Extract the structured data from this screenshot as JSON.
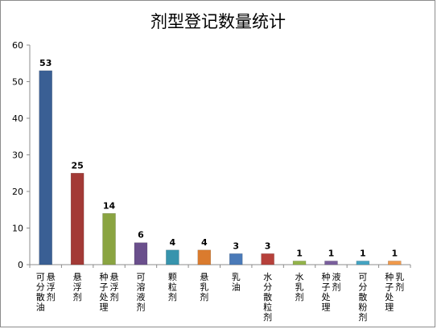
{
  "chart_data": {
    "type": "bar",
    "title": "剂型登记数量统计",
    "xlabel": "",
    "ylabel": "",
    "ylim": [
      0,
      60
    ],
    "yticks": [
      0,
      10,
      20,
      30,
      40,
      50,
      60
    ],
    "grid": false,
    "legend": "none",
    "categories": [
      "可分散油悬浮剂",
      "悬浮剂",
      "种子处理悬浮剂",
      "可溶液剂",
      "颗粒剂",
      "悬乳剂",
      "乳油",
      "水分散粒剂",
      "水乳剂",
      "种子处理液剂",
      "可分散粉剂",
      "种子处理乳剂"
    ],
    "category_columns": [
      [
        "悬浮剂",
        "可分散油"
      ],
      [
        "悬浮剂"
      ],
      [
        "悬浮剂",
        "种子处理"
      ],
      [
        "可溶液剂"
      ],
      [
        "颗粒剂"
      ],
      [
        "悬乳剂"
      ],
      [
        "乳油"
      ],
      [
        "水分散粒剂"
      ],
      [
        "水乳剂"
      ],
      [
        "液剂",
        "种子处理"
      ],
      [
        "可分散粉剂"
      ],
      [
        "乳剂",
        "种子处理"
      ]
    ],
    "values": [
      53,
      25,
      14,
      6,
      4,
      4,
      3,
      3,
      1,
      1,
      1,
      1
    ],
    "colors": [
      "#3a5f94",
      "#a33a36",
      "#8aa441",
      "#6a4f8c",
      "#3794ad",
      "#da7b2e",
      "#4a7ab8",
      "#b6403a",
      "#93b34a",
      "#7a5f9d",
      "#44a4c2",
      "#f09a4c"
    ]
  }
}
